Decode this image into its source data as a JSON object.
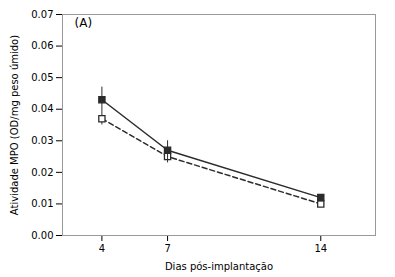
{
  "chart_data": {
    "type": "line",
    "x": [
      4,
      7,
      14
    ],
    "series": [
      {
        "color": "#2b2b2b",
        "values": [
          0.037,
          0.025,
          0.01
        ],
        "yerr": [
          0.002,
          0.002,
          0.001
        ],
        "line_style": "dashed",
        "marker": "open_square"
      },
      {
        "color": "#2b2b2b",
        "values": [
          0.043,
          0.027,
          0.012
        ],
        "yerr": [
          0.004,
          0.003,
          0.001
        ],
        "line_style": "solid",
        "marker": "square"
      }
    ],
    "xlabel": "Dias pós-implantação",
    "ylabel": "Atividade MPO (OD/mg peso úmido)",
    "annotations": [
      "(A)"
    ],
    "xlim": [
      2.2,
      16.5
    ],
    "xticks": [
      4,
      7,
      14
    ],
    "ylim": [
      0.0,
      0.07
    ],
    "yticks": [
      {
        "value": 0.0,
        "label": "0.00"
      },
      0.01,
      0.02,
      0.03,
      0.04,
      0.05,
      0.06,
      0.07
    ],
    "grid": false
  }
}
